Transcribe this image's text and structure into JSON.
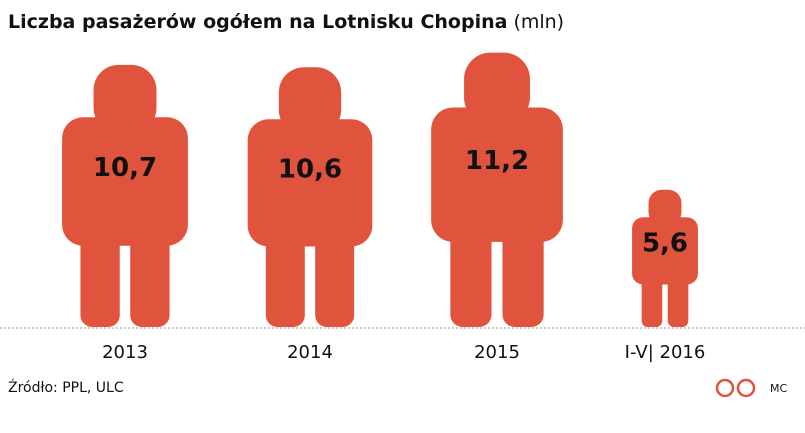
{
  "chart_data": {
    "type": "pictogram",
    "title": "Liczba pasażerów ogółem na Lotnisku Chopina",
    "unit": "(mln)",
    "categories": [
      "2013",
      "2014",
      "2015",
      "I-V| 2016"
    ],
    "values": [
      10.7,
      10.6,
      11.2,
      5.6
    ],
    "value_labels": [
      "10,7",
      "10,6",
      "11,2",
      "5,6"
    ],
    "color": "#e0533c",
    "source": "Źródło: PPL, ULC",
    "credit": "MC"
  }
}
